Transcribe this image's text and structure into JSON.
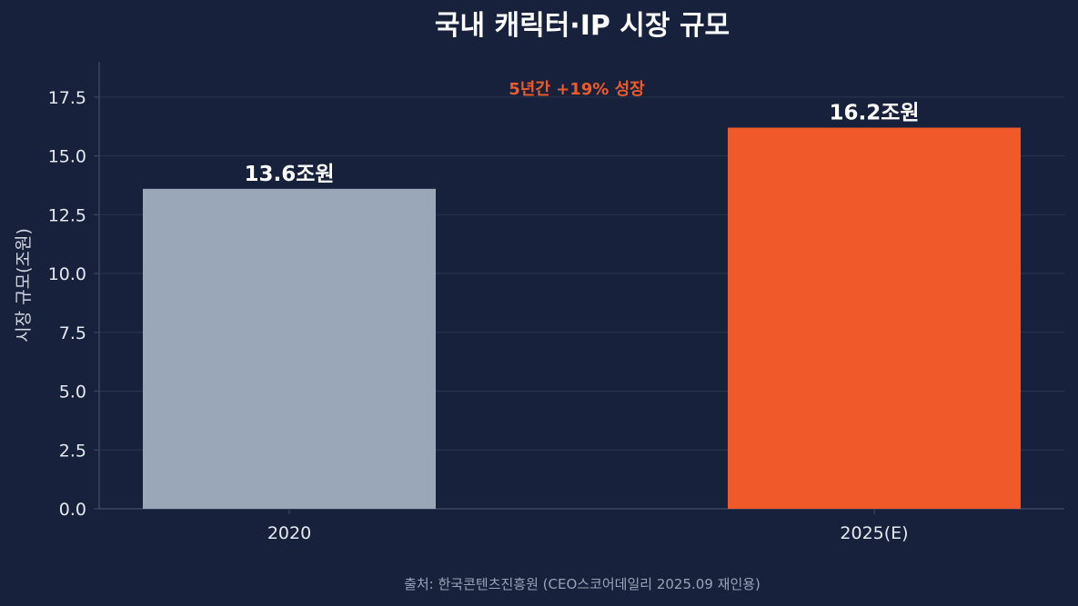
{
  "chart_data": {
    "type": "bar",
    "title": "국내 캐릭터·IP 시장 규모",
    "categories": [
      "2020",
      "2025(E)"
    ],
    "values": [
      13.6,
      16.2
    ],
    "data_labels": [
      "13.6조원",
      "16.2조원"
    ],
    "bar_colors": [
      "#9aa7b8",
      "#f05a2b"
    ],
    "ylabel": "시장 규모(조원)",
    "xlabel": "",
    "ylim": [
      0,
      19
    ],
    "yticks": [
      0.0,
      2.5,
      5.0,
      7.5,
      10.0,
      12.5,
      15.0,
      17.5
    ],
    "ytick_labels": [
      "0.0",
      "2.5",
      "5.0",
      "7.5",
      "10.0",
      "12.5",
      "15.0",
      "17.5"
    ],
    "grid": "horizontal",
    "annotation": "5년간 +19% 성장",
    "source": "출처: 한국콘텐츠진흥원 (CEO스코어데일리 2025.09 재인용)"
  },
  "colors": {
    "background": "#17213b",
    "grid": "#2a3650",
    "axis": "#3a4660",
    "accent": "#f05a2b"
  }
}
